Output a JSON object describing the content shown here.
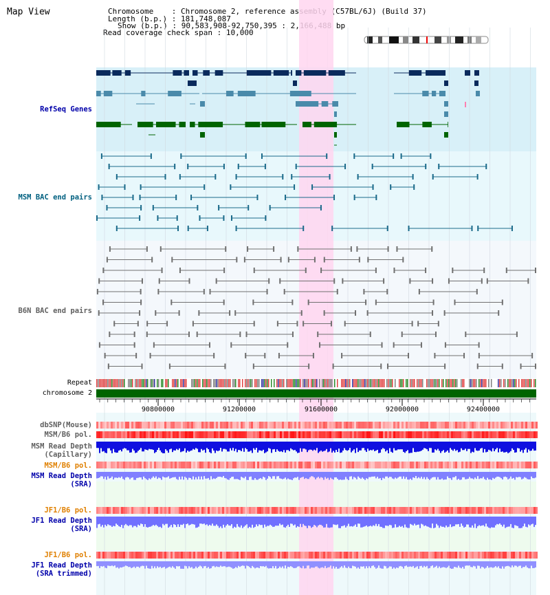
{
  "view": {
    "title": "Map View"
  },
  "info": {
    "chromosome_label": "Chromosome",
    "chromosome_value": "Chromosome 2, reference assembly (C57BL/6J) (Build 37)",
    "length_label": "Length (b.p.)",
    "length_value": "181,748,087",
    "show_label": "Show (b.p.)",
    "show_value": "90,583,908-92,750,395 : 2,166,488 bp",
    "coverage_label": "Read coverage check span",
    "coverage_value": "10,000"
  },
  "tracks": {
    "refseq": "RefSeq Genes",
    "msm_bac": "MSM BAC end pairs",
    "b6n_bac": "B6N BAC end pairs",
    "repeat": "Repeat",
    "chromosome": "chromosome 2",
    "dbsnp": "dbSNP(Mouse)",
    "msm_b6_pol_1": "MSM/B6 pol.",
    "msm_depth_cap_1": "MSM Read Depth",
    "msm_depth_cap_2": "(Capillary)",
    "msm_b6_pol_2": "MSM/B6 pol.",
    "msm_depth_sra_1": "MSM Read Depth",
    "msm_depth_sra_2": "(SRA)",
    "jf1_b6_pol_1": "JF1/B6 pol.",
    "jf1_depth_sra_1": "JF1 Read Depth",
    "jf1_depth_sra_2": "(SRA)",
    "jf1_b6_pol_2": "JF1/B6 pol.",
    "jf1_depth_trim_1": "JF1 Read Depth",
    "jf1_depth_trim_2": "(SRA trimmed)"
  },
  "axis": {
    "ticks": [
      "90800000",
      "91200000",
      "91600000",
      "92000000",
      "92400000"
    ]
  },
  "colors": {
    "refseq_bg": "#d8f0f8",
    "msm_bg": "#e8f8fc",
    "b6n_bg": "#f4f8fc",
    "highlight": "#ffd6f0",
    "label_blue": "#0000aa",
    "label_teal": "#006080",
    "label_gray": "#606060",
    "label_orange": "#e08000",
    "chromosome_green": "#006400"
  }
}
